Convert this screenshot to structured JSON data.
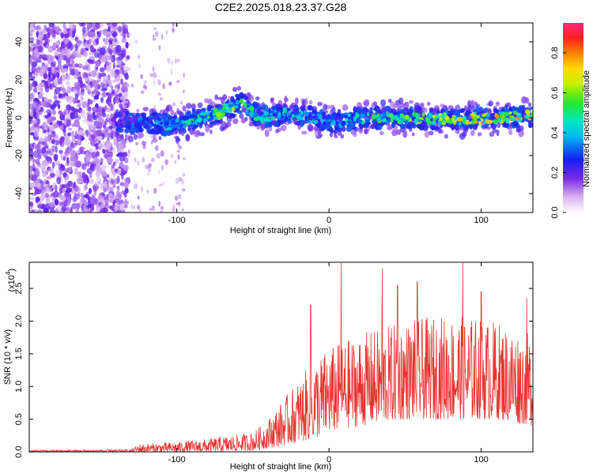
{
  "title": "C2E2.2025.018.23.37.G28",
  "chart_data": [
    {
      "type": "heatmap",
      "xlabel": "Height of straight line (km)",
      "ylabel": "Frequency (Hz)",
      "xlim": [
        -197,
        134
      ],
      "ylim": [
        -50,
        50
      ],
      "x_ticks": [
        -100,
        0,
        100
      ],
      "y_ticks": [
        -40,
        -20,
        0,
        20,
        40
      ],
      "colorbar": {
        "label": "Normalized spectral amplitude",
        "range": [
          0.0,
          0.95
        ],
        "ticks": [
          0.0,
          0.2,
          0.4,
          0.6,
          0.8
        ]
      },
      "ridge": [
        {
          "x": -197,
          "freq": 0.0,
          "amp": 0.25
        },
        {
          "x": -135,
          "freq": -2.0,
          "amp": 0.3
        },
        {
          "x": -120,
          "freq": -3.0,
          "amp": 0.4
        },
        {
          "x": -100,
          "freq": -4.0,
          "amp": 0.45
        },
        {
          "x": -85,
          "freq": 0.0,
          "amp": 0.55
        },
        {
          "x": -70,
          "freq": 3.0,
          "amp": 0.7
        },
        {
          "x": -58,
          "freq": 8.0,
          "amp": 0.6
        },
        {
          "x": -45,
          "freq": 0.0,
          "amp": 0.5
        },
        {
          "x": -30,
          "freq": 2.0,
          "amp": 0.5
        },
        {
          "x": -15,
          "freq": 1.0,
          "amp": 0.45
        },
        {
          "x": 0,
          "freq": -3.0,
          "amp": 0.4
        },
        {
          "x": 20,
          "freq": 0.0,
          "amp": 0.55
        },
        {
          "x": 50,
          "freq": 0.0,
          "amp": 0.65
        },
        {
          "x": 80,
          "freq": -1.0,
          "amp": 0.75
        },
        {
          "x": 110,
          "freq": 0.0,
          "amp": 0.8
        },
        {
          "x": 134,
          "freq": 1.0,
          "amp": 0.85
        }
      ]
    },
    {
      "type": "line",
      "xlabel": "Height of straight line (km)",
      "ylabel": "SNR (10 * v/v)",
      "y_multiplier": "(x10",
      "y_multiplier_exp": "4",
      "xlim": [
        -197,
        134
      ],
      "ylim": [
        0,
        2.9
      ],
      "x_ticks": [
        -100,
        0,
        100
      ],
      "y_ticks": [
        0.0,
        0.5,
        1.0,
        1.5,
        2.0,
        2.5
      ],
      "series": [
        {
          "color": "#e8322f",
          "envelope": [
            {
              "x": -197,
              "min": 0.0,
              "max": 0.03
            },
            {
              "x": -130,
              "min": 0.0,
              "max": 0.04
            },
            {
              "x": -125,
              "min": 0.0,
              "max": 0.12
            },
            {
              "x": -100,
              "min": 0.0,
              "max": 0.15
            },
            {
              "x": -80,
              "min": 0.0,
              "max": 0.2
            },
            {
              "x": -50,
              "min": 0.02,
              "max": 0.3
            },
            {
              "x": -42,
              "min": 0.05,
              "max": 0.45
            },
            {
              "x": -30,
              "min": 0.1,
              "max": 0.8
            },
            {
              "x": -20,
              "min": 0.15,
              "max": 1.1
            },
            {
              "x": -10,
              "min": 0.2,
              "max": 1.4
            },
            {
              "x": 0,
              "min": 0.3,
              "max": 1.6
            },
            {
              "x": 20,
              "min": 0.4,
              "max": 1.8
            },
            {
              "x": 50,
              "min": 0.5,
              "max": 2.0
            },
            {
              "x": 80,
              "min": 0.5,
              "max": 2.1
            },
            {
              "x": 110,
              "min": 0.5,
              "max": 2.0
            },
            {
              "x": 134,
              "min": 0.4,
              "max": 1.8
            }
          ],
          "peaks": [
            {
              "x": -12,
              "y": 2.25
            },
            {
              "x": 8,
              "y": 2.9
            },
            {
              "x": 35,
              "y": 2.8
            },
            {
              "x": 45,
              "y": 2.55
            },
            {
              "x": 58,
              "y": 2.6
            },
            {
              "x": 88,
              "y": 2.9
            },
            {
              "x": 100,
              "y": 2.45
            },
            {
              "x": 130,
              "y": 2.35
            }
          ]
        }
      ]
    }
  ]
}
